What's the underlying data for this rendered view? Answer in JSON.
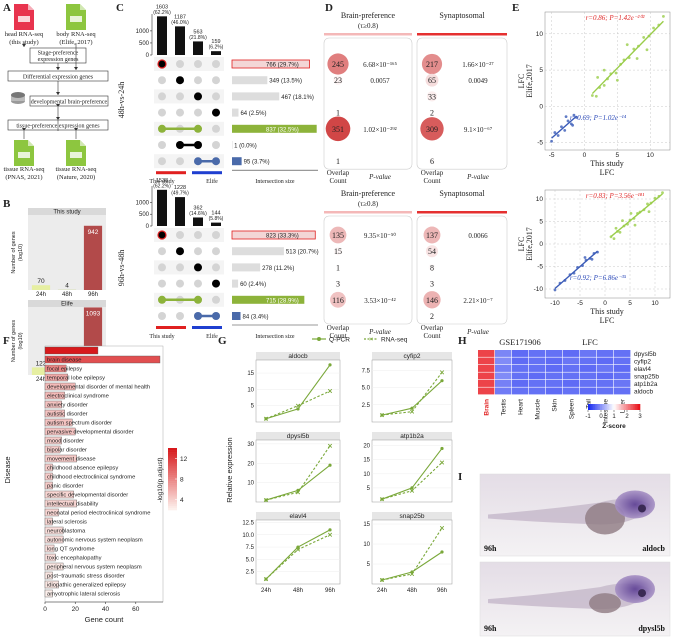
{
  "panel_labels": [
    "A",
    "B",
    "C",
    "D",
    "E",
    "F",
    "G",
    "H",
    "I"
  ],
  "A": {
    "sources": [
      [
        "head RNA-seq",
        "(this study)"
      ],
      [
        "body RNA-seq",
        "(Elife, 2017)"
      ],
      [
        "tissue RNA-seq",
        "(PNAS, 2021)"
      ],
      [
        "tissue RNA-seq",
        "(Nature, 2020)"
      ]
    ],
    "steps": [
      [
        "Stage-preference",
        "expression genes"
      ],
      [
        "Differential expression genes"
      ],
      [
        "developmental brain-preference"
      ],
      [
        "tissue-preference expression genes"
      ]
    ]
  },
  "B": {
    "ylabel": [
      "Number of genes",
      "(log10)"
    ],
    "categories": [
      "24h",
      "48h",
      "96h"
    ],
    "colors": [
      "#e6efa2",
      "#c9d98e",
      "#b24a4a"
    ],
    "ylim": [
      0,
      1100
    ],
    "plots": [
      {
        "title": "This study",
        "values": [
          70,
          4,
          942
        ]
      },
      {
        "title": "Elife",
        "values": [
          123,
          5,
          1093
        ]
      }
    ]
  },
  "C": {
    "xlabel": "Intersection size",
    "groups": [
      "This study",
      "Elife"
    ],
    "plots": [
      {
        "title": "48h-vs-24h",
        "set_sizes": [
          1603,
          1187,
          563,
          159
        ],
        "set_percents": [
          "(62.2%)",
          "(46.0%)",
          "(21.8%)",
          "(6.2%)"
        ],
        "set_ylim": [
          0,
          1700
        ],
        "set_yticks": [
          0,
          500,
          1000
        ],
        "matrix": [
          [
            0
          ],
          [
            1
          ],
          [
            2
          ],
          [
            3
          ],
          [
            0,
            2
          ],
          [
            1,
            2
          ],
          [
            2,
            3
          ]
        ],
        "dot_colors": [
          "#000000",
          "#000000",
          "#000000",
          "#000000",
          "#8db33a",
          "#000000",
          "#4a6aaa"
        ],
        "intersections": [
          766,
          349,
          467,
          64,
          837,
          1,
          95
        ],
        "intersection_labels": [
          "766 (29.7%)",
          "349 (13.5%)",
          "467 (18.1%)",
          "64 (2.5%)",
          "837 (32.5%)",
          "1 (0.0%)",
          "95 (3.7%)"
        ],
        "bar_colors": [
          "#f3d6d6",
          "#dddddd",
          "#dddddd",
          "#dddddd",
          "#8db33a",
          "#dddddd",
          "#4a6aaa"
        ],
        "xlim": [
          0,
          850
        ]
      },
      {
        "title": "96h-vs-48h",
        "set_sizes": [
          1538,
          1228,
          362,
          144
        ],
        "set_percents": [
          "(62.2%)",
          "(49.7%)",
          "(14.6%)",
          "(5.8%)"
        ],
        "set_ylim": [
          0,
          1700
        ],
        "set_yticks": [
          0,
          500,
          1000
        ],
        "matrix": [
          [
            0
          ],
          [
            1
          ],
          [
            2
          ],
          [
            3
          ],
          [
            0,
            2
          ],
          [
            2,
            3
          ]
        ],
        "dot_colors": [
          "#000000",
          "#000000",
          "#000000",
          "#000000",
          "#8db33a",
          "#4a6aaa"
        ],
        "intersections": [
          823,
          513,
          278,
          60,
          715,
          84
        ],
        "intersection_labels": [
          "823 (33.3%)",
          "513 (20.7%)",
          "278 (11.2%)",
          "60 (2.4%)",
          "715 (28.9%)",
          "84 (3.4%)"
        ],
        "bar_colors": [
          "#f3d6d6",
          "#dddddd",
          "#dddddd",
          "#dddddd",
          "#8db33a",
          "#4a6aaa"
        ],
        "xlim": [
          0,
          850
        ]
      }
    ]
  },
  "D": {
    "brain_title": "Brain-preference",
    "brain_subtitle": "(τ≥0.8)",
    "syn_title": "Synaptosomal",
    "count_header": [
      "Overlap",
      "Count"
    ],
    "p_header": "P-value",
    "tables": [
      {
        "brain_counts": [
          245,
          23,
          null,
          1,
          351,
          null,
          1
        ],
        "brain_p": [
          "6.68×10⁻¹⁶⁵",
          "0.0057",
          null,
          null,
          "1.02×10⁻²⁹²",
          null,
          null
        ],
        "syn_counts": [
          217,
          65,
          33,
          2,
          309,
          null,
          6
        ],
        "syn_p": [
          "1.66×10⁻²⁷",
          "0.0049",
          null,
          null,
          "9.1×10⁻⁶⁷",
          null,
          null
        ]
      },
      {
        "brain_counts": [
          135,
          15,
          1,
          3,
          116,
          null
        ],
        "brain_p": [
          "9.35×10⁻⁵⁰",
          null,
          null,
          null,
          "3.53×10⁻⁴²",
          null
        ],
        "syn_counts": [
          137,
          54,
          8,
          3,
          146,
          2
        ],
        "syn_p": [
          "0.0066",
          null,
          null,
          null,
          "2.21×10⁻⁷",
          null
        ]
      }
    ]
  },
  "E": {
    "xlabel": [
      "This study",
      "LFC"
    ],
    "ylabel": [
      "LFC",
      "Elife,2017"
    ],
    "plots": [
      {
        "xlim": [
          -6,
          13
        ],
        "ylim": [
          -6,
          13
        ],
        "xticks": [
          -5,
          0,
          5,
          10
        ],
        "yticks": [
          -5,
          0,
          5,
          10
        ],
        "stats": [
          "r=0.86; P=1.42e⁻²⁰²",
          "r=0.69; P=1.02e⁻¹⁴"
        ],
        "points": [
          {
            "color": "#9acd4a",
            "x": [
              1.2,
              1.8,
              2.3,
              3,
              3.5,
              4,
              4.8,
              5.5,
              6,
              6.8,
              7.5,
              8.2,
              9,
              9.8,
              10.5,
              11.3,
              12,
              3,
              5,
              8,
              2,
              6.5,
              9.5
            ],
            "y": [
              1.5,
              1.4,
              2.6,
              2.9,
              3.8,
              4.5,
              4.6,
              5.8,
              6.4,
              6.7,
              7.9,
              8.3,
              9.5,
              9.7,
              10.8,
              11.2,
              12.4,
              5,
              3.6,
              6.6,
              4,
              8.5,
              7.8
            ]
          },
          {
            "color": "#3a5bb8",
            "x": [
              -1.2,
              -1.6,
              -2,
              -2.5,
              -3,
              -3.5,
              -4,
              -4.5,
              -5,
              -2.8,
              -1.8
            ],
            "y": [
              -1.5,
              -1.2,
              -2.4,
              -2,
              -3.3,
              -2.8,
              -4,
              -3.6,
              -4.8,
              -1.4,
              -2.6
            ]
          }
        ]
      },
      {
        "xlim": [
          -12,
          13
        ],
        "ylim": [
          -12,
          12
        ],
        "xticks": [
          -10,
          -5,
          0,
          5,
          10
        ],
        "yticks": [
          -10,
          -5,
          0,
          5,
          10
        ],
        "stats": [
          "r=0.83; P=3.56e⁻¹⁸¹",
          "r=0.92; P=6.86e⁻³⁵"
        ],
        "points": [
          {
            "color": "#9acd4a",
            "x": [
              1.2,
              1.8,
              2.5,
              3,
              3.8,
              4.5,
              5,
              5.8,
              6.5,
              7,
              7.8,
              8.5,
              9.2,
              10,
              10.8,
              11.5,
              3.5,
              6,
              8.8,
              2.2,
              5.2
            ],
            "y": [
              1.6,
              1.2,
              2.8,
              2.6,
              4,
              4.4,
              5.3,
              5.7,
              6.8,
              7.1,
              7.6,
              8.9,
              9.1,
              10.2,
              10.6,
              11.4,
              5.2,
              4.2,
              7.2,
              3.5,
              6.8
            ]
          },
          {
            "color": "#3a5bb8",
            "x": [
              -1.5,
              -2.2,
              -3,
              -3.8,
              -4.5,
              -5.5,
              -6.2,
              -7,
              -8,
              -9,
              -10,
              -4,
              -2.6
            ],
            "y": [
              -1.8,
              -2.1,
              -3.2,
              -3.6,
              -4.8,
              -5.2,
              -6.5,
              -6.8,
              -8.1,
              -8.7,
              -10.2,
              -3,
              -3.4
            ]
          }
        ]
      }
    ]
  },
  "F": {
    "ylabel": "Disease",
    "xlabel": "Gene count",
    "legend_title": "-log10(p.adjust)",
    "categories": [
      null,
      "brain disease",
      "focal epilepsy",
      "temporal lobe epilepsy",
      "developmental disorder of mental health",
      "electroclinical syndrome",
      "anxiety disorder",
      "autistic disorder",
      "autism spectrum disorder",
      "pervasive developmental disorder",
      "mood disorder",
      "bipolar disorder",
      "movement disease",
      "childhood absence epilepsy",
      "childhood electroclinical syndrome",
      "panic disorder",
      "specific developmental disorder",
      "intellectual disability",
      "neonatal period electroclinical syndrome",
      "lateral sclerosis",
      "neuroblastoma",
      "autonomic nervous system neoplasm",
      "long QT syndrome",
      "toxic encephalopathy",
      "peripheral nervous system neoplasm",
      "post−traumatic stress disorder",
      "idiopathic generalized epilepsy",
      "amyotrophic lateral sclerosis"
    ],
    "values": [
      35,
      76,
      14,
      15,
      20,
      13,
      11,
      13,
      18,
      20,
      11,
      10,
      21,
      5,
      5,
      5,
      19,
      21,
      9,
      5,
      12,
      12,
      6,
      7,
      12,
      5,
      9,
      5
    ],
    "padj": [
      15,
      11,
      8,
      6,
      5,
      5,
      4.5,
      4.5,
      4.5,
      4.5,
      4,
      4,
      4,
      4,
      4,
      4,
      3.5,
      3.5,
      3.5,
      3.5,
      3,
      3,
      3,
      3,
      2.5,
      2.5,
      2.5,
      2
    ],
    "xlim": [
      0,
      78
    ],
    "xticks": [
      0,
      20,
      40,
      60
    ],
    "colorlim": [
      2,
      14
    ],
    "legend_ticks": [
      4,
      8,
      12
    ],
    "colors": [
      "#fdf0ec",
      "#d7191c"
    ]
  },
  "G": {
    "legend": [
      "Q-PCR",
      "RNA-seq"
    ],
    "ylabel": "Relative expression",
    "x": [
      "24h",
      "48h",
      "96h"
    ],
    "color": "#7aa83a",
    "plots": [
      {
        "title": "aldocb",
        "ylim": [
          0,
          19
        ],
        "yticks": [
          5,
          10,
          15
        ],
        "qpcr": [
          1,
          4,
          17.5
        ],
        "rnaseq": [
          1,
          5,
          9.5
        ]
      },
      {
        "title": "cyfip2",
        "ylim": [
          0,
          9
        ],
        "yticks": [
          2.5,
          {
            "value": 5,
            "label": "5.0"
          },
          7.5
        ],
        "qpcr": [
          1,
          2,
          6
        ],
        "rnaseq": [
          1,
          1.5,
          7.2
        ]
      },
      {
        "title": "dpysl5b",
        "ylim": [
          0,
          32
        ],
        "yticks": [
          10,
          20,
          30
        ],
        "qpcr": [
          1,
          6,
          19
        ],
        "rnaseq": [
          1,
          5,
          29
        ]
      },
      {
        "title": "atp1b2a",
        "ylim": [
          0,
          22
        ],
        "yticks": [
          5,
          10,
          15,
          20
        ],
        "qpcr": [
          1,
          5,
          19
        ],
        "rnaseq": [
          1,
          4,
          14
        ]
      },
      {
        "title": "elavl4",
        "ylim": [
          0,
          13
        ],
        "yticks": [
          2.5,
          {
            "value": 5,
            "label": "5.0"
          },
          7.5,
          {
            "value": 10,
            "label": "10.0"
          },
          12.5
        ],
        "qpcr": [
          1,
          7.5,
          11
        ],
        "rnaseq": [
          1,
          7,
          10
        ]
      },
      {
        "title": "snap25b",
        "ylim": [
          0,
          16
        ],
        "yticks": [
          5,
          10,
          15
        ],
        "qpcr": [
          1,
          3,
          8
        ],
        "rnaseq": [
          1,
          2.5,
          14
        ]
      }
    ]
  },
  "H": {
    "title": "GSE171906",
    "subtitle": "LFC",
    "legend_title": "Z-score",
    "columns": [
      "Brain",
      "Testis",
      "Heart",
      "Muscle",
      "Skin",
      "Spleen",
      "Tail",
      "Intestine",
      "Liver"
    ],
    "rows": [
      "dpysl5b",
      "cyfip2",
      "elavl4",
      "snap25b",
      "atp1b2a",
      "aldocb"
    ],
    "values": [
      [
        2.6,
        -0.15,
        -0.4,
        -0.35,
        -0.35,
        -0.4,
        -0.3,
        -0.35,
        -0.35
      ],
      [
        2.6,
        -0.1,
        -0.4,
        -0.35,
        -0.4,
        -0.3,
        -0.35,
        -0.4,
        -0.35
      ],
      [
        2.6,
        -0.2,
        -0.35,
        -0.35,
        -0.4,
        -0.35,
        -0.4,
        -0.3,
        -0.4
      ],
      [
        2.6,
        -0.1,
        -0.35,
        -0.4,
        -0.35,
        -0.35,
        -0.35,
        -0.4,
        -0.35
      ],
      [
        2.6,
        -0.2,
        -0.4,
        -0.35,
        -0.35,
        -0.4,
        -0.35,
        -0.35,
        -0.3
      ],
      [
        2.6,
        -0.25,
        -0.35,
        -0.35,
        -0.4,
        -0.35,
        -0.4,
        -0.35,
        -0.35
      ]
    ],
    "zlim": [
      -1,
      3
    ],
    "legend_ticks": [
      -1,
      0,
      1,
      2,
      3
    ],
    "colors": [
      "#1a2cf0",
      "#ffffff",
      "#e8141c"
    ]
  },
  "I": {
    "images": [
      {
        "stage": "96h",
        "gene": "aldocb"
      },
      {
        "stage": "96h",
        "gene": "dpysl5b"
      }
    ]
  }
}
